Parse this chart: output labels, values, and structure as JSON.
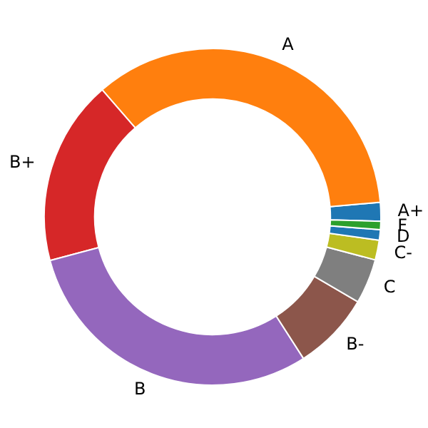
{
  "chart_data": {
    "type": "donut",
    "categories": [
      "A+",
      "A",
      "B+",
      "B",
      "B-",
      "C",
      "C-",
      "D",
      "F"
    ],
    "values": [
      1.8,
      35,
      17.8,
      29.9,
      7.5,
      4.3,
      1.9,
      1,
      0.8
    ],
    "colors": [
      "#1f77b4",
      "#ff7f0e",
      "#d62728",
      "#9467bd",
      "#8c564b",
      "#7f7f7f",
      "#bcbd22",
      "#1f77b4",
      "#2ca02c"
    ]
  }
}
